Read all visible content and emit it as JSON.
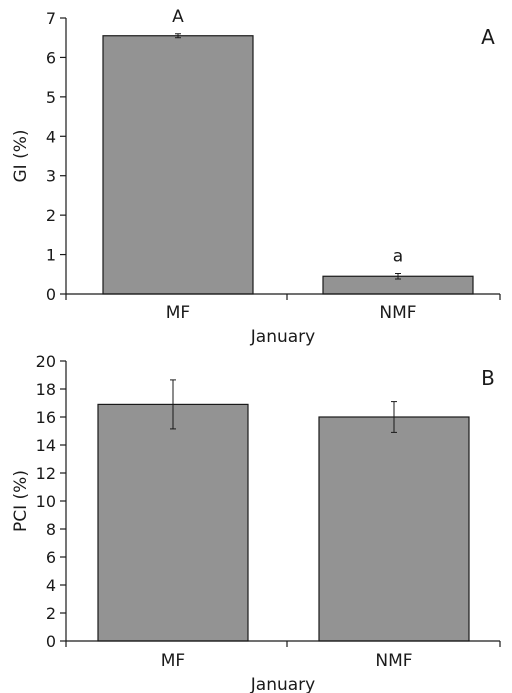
{
  "colors": {
    "bar_fill": "#939393",
    "bar_stroke": "#1a1a1a",
    "axis": "#1a1a1a"
  },
  "chart_data": [
    {
      "type": "bar",
      "panel": "A",
      "categories": [
        "MF",
        "NMF"
      ],
      "values": [
        6.55,
        0.45
      ],
      "errors": [
        0.05,
        0.07
      ],
      "annotations": [
        "A",
        "a"
      ],
      "xlabel": "January",
      "ylabel": "GI (%)",
      "ylim": [
        0,
        7
      ],
      "yticks": [
        0,
        1,
        2,
        3,
        4,
        5,
        6,
        7
      ]
    },
    {
      "type": "bar",
      "panel": "B",
      "categories": [
        "MF",
        "NMF"
      ],
      "values": [
        16.9,
        16.0
      ],
      "errors": [
        1.75,
        1.1
      ],
      "annotations": [
        "",
        ""
      ],
      "xlabel": "January",
      "ylabel": "PCI (%)",
      "ylim": [
        0,
        20
      ],
      "yticks": [
        0,
        2,
        4,
        6,
        8,
        10,
        12,
        14,
        16,
        18,
        20
      ]
    }
  ]
}
